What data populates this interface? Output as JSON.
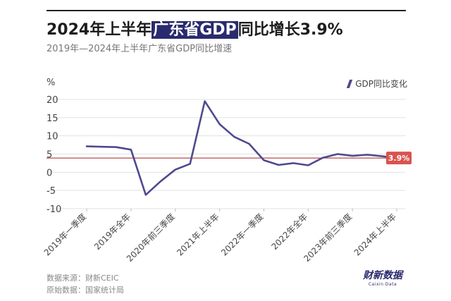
{
  "header": {
    "title_part1": "2024年上半年",
    "title_highlight": "广东省GDP",
    "title_part2": "同比增长3.9%",
    "subtitle": "2019年—2024年上半年广东省GDP同比增速"
  },
  "footer": {
    "source": "数据来源：财新CEIC",
    "original": "原始数据：国家统计局"
  },
  "logo": {
    "cn": "财新数据",
    "en": "Caixin Data"
  },
  "colors": {
    "line": "#4e4a8e",
    "reference": "#b03a3a",
    "badge": "#d9534f",
    "highlight": "#2a2a6e"
  },
  "chart_data": {
    "type": "line",
    "title": "2024年上半年广东省GDP同比增长3.9%",
    "subtitle": "2019年—2024年上半年广东省GDP同比增速",
    "ylabel": "%",
    "ylim": [
      -10,
      20
    ],
    "yticks": [
      -10,
      -5,
      0,
      5,
      10,
      15,
      20
    ],
    "ytick_labels": [
      "-10",
      "-5",
      "0",
      "5",
      "10",
      "15",
      "20"
    ],
    "grid": true,
    "legend": "top-right",
    "x_labels": [
      "2019年一季度",
      "2019年全年",
      "2020年前三季度",
      "2021年上半年",
      "2022年一季度",
      "2022年全年",
      "2023年前三季度",
      "2024年上半年"
    ],
    "x_label_index": [
      0,
      3,
      6,
      9,
      12,
      15,
      18,
      21
    ],
    "series": [
      {
        "name": "GDP同比变化",
        "values": [
          7.1,
          7.0,
          6.9,
          6.2,
          -6.2,
          -2.5,
          0.7,
          2.3,
          19.5,
          13.2,
          9.7,
          7.8,
          3.3,
          2.0,
          2.5,
          1.9,
          4.0,
          5.0,
          4.5,
          4.8,
          4.4,
          3.9
        ]
      }
    ],
    "reference_line": {
      "value": 3.9,
      "label": "3.9%"
    }
  }
}
